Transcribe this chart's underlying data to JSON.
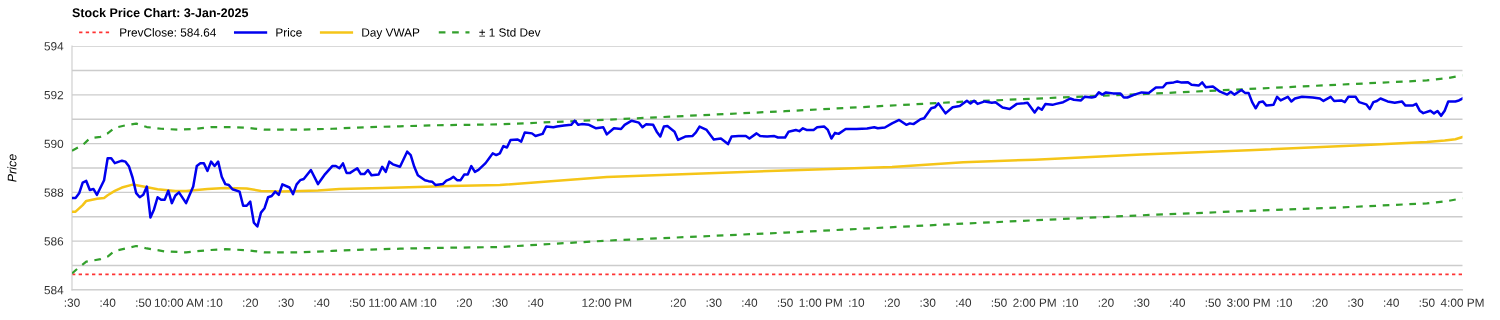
{
  "chart_data": {
    "type": "line",
    "title": "Stock Price Chart: 3-Jan-2025",
    "ylabel": "Price",
    "xlim": [
      "2025-01-03T09:30",
      "2025-01-03T16:00"
    ],
    "ylim": [
      584,
      594
    ],
    "xticks": [
      {
        "value": "2025-01-03T09:30",
        "label": ":30"
      },
      {
        "value": "2025-01-03T09:40",
        "label": ":40"
      },
      {
        "value": "2025-01-03T09:50",
        "label": ":50"
      },
      {
        "value": "2025-01-03T10:00",
        "label": "10:00 AM"
      },
      {
        "value": "2025-01-03T10:10",
        "label": ":10"
      },
      {
        "value": "2025-01-03T10:20",
        "label": ":20"
      },
      {
        "value": "2025-01-03T10:30",
        "label": ":30"
      },
      {
        "value": "2025-01-03T10:40",
        "label": ":40"
      },
      {
        "value": "2025-01-03T10:50",
        "label": ":50"
      },
      {
        "value": "2025-01-03T11:00",
        "label": "11:00 AM"
      },
      {
        "value": "2025-01-03T11:10",
        "label": ":10"
      },
      {
        "value": "2025-01-03T11:20",
        "label": ":20"
      },
      {
        "value": "2025-01-03T11:30",
        "label": ":30"
      },
      {
        "value": "2025-01-03T11:40",
        "label": ":40"
      },
      {
        "value": "2025-01-03T12:00",
        "label": "12:00 PM"
      },
      {
        "value": "2025-01-03T12:20",
        "label": ":20"
      },
      {
        "value": "2025-01-03T12:30",
        "label": ":30"
      },
      {
        "value": "2025-01-03T12:40",
        "label": ":40"
      },
      {
        "value": "2025-01-03T12:50",
        "label": ":50"
      },
      {
        "value": "2025-01-03T13:00",
        "label": "1:00 PM"
      },
      {
        "value": "2025-01-03T13:10",
        "label": ":10"
      },
      {
        "value": "2025-01-03T13:20",
        "label": ":20"
      },
      {
        "value": "2025-01-03T13:30",
        "label": ":30"
      },
      {
        "value": "2025-01-03T13:40",
        "label": ":40"
      },
      {
        "value": "2025-01-03T13:50",
        "label": ":50"
      },
      {
        "value": "2025-01-03T14:00",
        "label": "2:00 PM"
      },
      {
        "value": "2025-01-03T14:10",
        "label": ":10"
      },
      {
        "value": "2025-01-03T14:20",
        "label": ":20"
      },
      {
        "value": "2025-01-03T14:30",
        "label": ":30"
      },
      {
        "value": "2025-01-03T14:40",
        "label": ":40"
      },
      {
        "value": "2025-01-03T14:50",
        "label": ":50"
      },
      {
        "value": "2025-01-03T15:00",
        "label": "3:00 PM"
      },
      {
        "value": "2025-01-03T15:10",
        "label": ":10"
      },
      {
        "value": "2025-01-03T15:20",
        "label": ":20"
      },
      {
        "value": "2025-01-03T15:30",
        "label": ":30"
      },
      {
        "value": "2025-01-03T15:40",
        "label": ":40"
      },
      {
        "value": "2025-01-03T15:50",
        "label": ":50"
      },
      {
        "value": "2025-01-03T16:00",
        "label": "4:00 PM"
      }
    ],
    "yticks": [
      584,
      {
        "value": 585,
        "label": null
      },
      586,
      {
        "value": 587,
        "label": null
      },
      588,
      {
        "value": 589,
        "label": null
      },
      590,
      {
        "value": 591,
        "label": null
      },
      592,
      {
        "value": 593,
        "label": null
      },
      594
    ],
    "grid": "y",
    "legend": "top left",
    "marker": "none",
    "ref_lines": [
      {
        "axis": "y",
        "value": 584.64,
        "label": "PrevClose: 584.64",
        "color": "#ff3333",
        "line_style": "dotted"
      }
    ],
    "series": [
      {
        "name": "Price",
        "color": "#0000ee",
        "line_style": "solid",
        "x": [
          "2025-01-03T09:30",
          "2025-01-03T09:31",
          "2025-01-03T09:32",
          "2025-01-03T09:33",
          "2025-01-03T09:34",
          "2025-01-03T09:35",
          "2025-01-03T09:36",
          "2025-01-03T09:37",
          "2025-01-03T09:39",
          "2025-01-03T09:40",
          "2025-01-03T09:41",
          "2025-01-03T09:42",
          "2025-01-03T09:44",
          "2025-01-03T09:45",
          "2025-01-03T09:46",
          "2025-01-03T09:47",
          "2025-01-03T09:48",
          "2025-01-03T09:49",
          "2025-01-03T09:50",
          "2025-01-03T09:51",
          "2025-01-03T09:52",
          "2025-01-03T09:53",
          "2025-01-03T09:54",
          "2025-01-03T09:55",
          "2025-01-03T09:56",
          "2025-01-03T09:57",
          "2025-01-03T09:58",
          "2025-01-03T09:59",
          "2025-01-03T10:00",
          "2025-01-03T10:02",
          "2025-01-03T10:04",
          "2025-01-03T10:05",
          "2025-01-03T10:06",
          "2025-01-03T10:07",
          "2025-01-03T10:08",
          "2025-01-03T10:09",
          "2025-01-03T10:10",
          "2025-01-03T10:11",
          "2025-01-03T10:12",
          "2025-01-03T10:13",
          "2025-01-03T10:14",
          "2025-01-03T10:15",
          "2025-01-03T10:17",
          "2025-01-03T10:18",
          "2025-01-03T10:19",
          "2025-01-03T10:20",
          "2025-01-03T10:21",
          "2025-01-03T10:22",
          "2025-01-03T10:23",
          "2025-01-03T10:24",
          "2025-01-03T10:25",
          "2025-01-03T10:26",
          "2025-01-03T10:27",
          "2025-01-03T10:28",
          "2025-01-03T10:29",
          "2025-01-03T10:31",
          "2025-01-03T10:32",
          "2025-01-03T10:33",
          "2025-01-03T10:34",
          "2025-01-03T10:35",
          "2025-01-03T10:37",
          "2025-01-03T10:39",
          "2025-01-03T10:41",
          "2025-01-03T10:43",
          "2025-01-03T10:44",
          "2025-01-03T10:45",
          "2025-01-03T10:46",
          "2025-01-03T10:47",
          "2025-01-03T10:48",
          "2025-01-03T10:50",
          "2025-01-03T10:51",
          "2025-01-03T10:52",
          "2025-01-03T10:53",
          "2025-01-03T10:54",
          "2025-01-03T10:56",
          "2025-01-03T10:57",
          "2025-01-03T10:58",
          "2025-01-03T10:59",
          "2025-01-03T11:00",
          "2025-01-03T11:02",
          "2025-01-03T11:04",
          "2025-01-03T11:05",
          "2025-01-03T11:06",
          "2025-01-03T11:07",
          "2025-01-03T11:09",
          "2025-01-03T11:10",
          "2025-01-03T11:11",
          "2025-01-03T11:12",
          "2025-01-03T11:14",
          "2025-01-03T11:15",
          "2025-01-03T11:16",
          "2025-01-03T11:17",
          "2025-01-03T11:18",
          "2025-01-03T11:19",
          "2025-01-03T11:20",
          "2025-01-03T11:21",
          "2025-01-03T11:22",
          "2025-01-03T11:23",
          "2025-01-03T11:24",
          "2025-01-03T11:26",
          "2025-01-03T11:27",
          "2025-01-03T11:28",
          "2025-01-03T11:29",
          "2025-01-03T11:30",
          "2025-01-03T11:31",
          "2025-01-03T11:32",
          "2025-01-03T11:33",
          "2025-01-03T11:35",
          "2025-01-03T11:36",
          "2025-01-03T11:37",
          "2025-01-03T11:39",
          "2025-01-03T11:40",
          "2025-01-03T11:42",
          "2025-01-03T11:43",
          "2025-01-03T11:45",
          "2025-01-03T11:46",
          "2025-01-03T11:48",
          "2025-01-03T11:50",
          "2025-01-03T11:51",
          "2025-01-03T11:52",
          "2025-01-03T11:53",
          "2025-01-03T11:55",
          "2025-01-03T11:57",
          "2025-01-03T11:59",
          "2025-01-03T12:00",
          "2025-01-03T12:02",
          "2025-01-03T12:04",
          "2025-01-03T12:05",
          "2025-01-03T12:07",
          "2025-01-03T12:09",
          "2025-01-03T12:10",
          "2025-01-03T12:11",
          "2025-01-03T12:13",
          "2025-01-03T12:14",
          "2025-01-03T12:15",
          "2025-01-03T12:16",
          "2025-01-03T12:17",
          "2025-01-03T12:19",
          "2025-01-03T12:20",
          "2025-01-03T12:22",
          "2025-01-03T12:24",
          "2025-01-03T12:25",
          "2025-01-03T12:26",
          "2025-01-03T12:28",
          "2025-01-03T12:30",
          "2025-01-03T12:32",
          "2025-01-03T12:34",
          "2025-01-03T12:35",
          "2025-01-03T12:37",
          "2025-01-03T12:39",
          "2025-01-03T12:40",
          "2025-01-03T12:42",
          "2025-01-03T12:43",
          "2025-01-03T12:45",
          "2025-01-03T12:47",
          "2025-01-03T12:48",
          "2025-01-03T12:50",
          "2025-01-03T12:51",
          "2025-01-03T12:53",
          "2025-01-03T12:54",
          "2025-01-03T12:55",
          "2025-01-03T12:56",
          "2025-01-03T12:58",
          "2025-01-03T12:59",
          "2025-01-03T13:01",
          "2025-01-03T13:02",
          "2025-01-03T13:03",
          "2025-01-03T13:04",
          "2025-01-03T13:05",
          "2025-01-03T13:07",
          "2025-01-03T13:10",
          "2025-01-03T13:13",
          "2025-01-03T13:15",
          "2025-01-03T13:16",
          "2025-01-03T13:18",
          "2025-01-03T13:20",
          "2025-01-03T13:22",
          "2025-01-03T13:24",
          "2025-01-03T13:25",
          "2025-01-03T13:26",
          "2025-01-03T13:28",
          "2025-01-03T13:29",
          "2025-01-03T13:31",
          "2025-01-03T13:32",
          "2025-01-03T13:33",
          "2025-01-03T13:35",
          "2025-01-03T13:37",
          "2025-01-03T13:39",
          "2025-01-03T13:41",
          "2025-01-03T13:42",
          "2025-01-03T13:43",
          "2025-01-03T13:44",
          "2025-01-03T13:46",
          "2025-01-03T13:48",
          "2025-01-03T13:49",
          "2025-01-03T13:51",
          "2025-01-03T13:53",
          "2025-01-03T13:55",
          "2025-01-03T13:57",
          "2025-01-03T13:58",
          "2025-01-03T14:00",
          "2025-01-03T14:01",
          "2025-01-03T14:02",
          "2025-01-03T14:03",
          "2025-01-03T14:05",
          "2025-01-03T14:06",
          "2025-01-03T14:08",
          "2025-01-03T14:10",
          "2025-01-03T14:11",
          "2025-01-03T14:13",
          "2025-01-03T14:14",
          "2025-01-03T14:16",
          "2025-01-03T14:17",
          "2025-01-03T14:18",
          "2025-01-03T14:19",
          "2025-01-03T14:20",
          "2025-01-03T14:22",
          "2025-01-03T14:24",
          "2025-01-03T14:25",
          "2025-01-03T14:26",
          "2025-01-03T14:28",
          "2025-01-03T14:30",
          "2025-01-03T14:32",
          "2025-01-03T14:34",
          "2025-01-03T14:36",
          "2025-01-03T14:37",
          "2025-01-03T14:39",
          "2025-01-03T14:40",
          "2025-01-03T14:41",
          "2025-01-03T14:43",
          "2025-01-03T14:44",
          "2025-01-03T14:46",
          "2025-01-03T14:47",
          "2025-01-03T14:48",
          "2025-01-03T14:50",
          "2025-01-03T14:52",
          "2025-01-03T14:54",
          "2025-01-03T14:55",
          "2025-01-03T14:56",
          "2025-01-03T14:58",
          "2025-01-03T14:59",
          "2025-01-03T15:00",
          "2025-01-03T15:01",
          "2025-01-03T15:02",
          "2025-01-03T15:03",
          "2025-01-03T15:04",
          "2025-01-03T15:05",
          "2025-01-03T15:07",
          "2025-01-03T15:08",
          "2025-01-03T15:09",
          "2025-01-03T15:11",
          "2025-01-03T15:12",
          "2025-01-03T15:13",
          "2025-01-03T15:15",
          "2025-01-03T15:18",
          "2025-01-03T15:20",
          "2025-01-03T15:21",
          "2025-01-03T15:23",
          "2025-01-03T15:24",
          "2025-01-03T15:26",
          "2025-01-03T15:27",
          "2025-01-03T15:28",
          "2025-01-03T15:30",
          "2025-01-03T15:31",
          "2025-01-03T15:33",
          "2025-01-03T15:34",
          "2025-01-03T15:35",
          "2025-01-03T15:36",
          "2025-01-03T15:37",
          "2025-01-03T15:39",
          "2025-01-03T15:41",
          "2025-01-03T15:43",
          "2025-01-03T15:44",
          "2025-01-03T15:46",
          "2025-01-03T15:47",
          "2025-01-03T15:48",
          "2025-01-03T15:49",
          "2025-01-03T15:51",
          "2025-01-03T15:52",
          "2025-01-03T15:53",
          "2025-01-03T15:54",
          "2025-01-03T15:55",
          "2025-01-03T15:56",
          "2025-01-03T15:58",
          "2025-01-03T15:59",
          "2025-01-03T16:00"
        ],
        "values": [
          587.77,
          587.77,
          587.96,
          588.4,
          588.47,
          588.1,
          588.14,
          587.9,
          588.5,
          589.4,
          589.4,
          589.2,
          589.3,
          589.26,
          589.06,
          588.6,
          587.97,
          587.8,
          587.9,
          588.24,
          586.97,
          587.3,
          587.8,
          587.7,
          587.7,
          588.07,
          587.56,
          587.87,
          588.0,
          587.56,
          588.24,
          589.08,
          589.19,
          589.19,
          588.88,
          589.26,
          589.08,
          589.26,
          588.64,
          588.34,
          588.3,
          588.13,
          588.03,
          587.45,
          587.45,
          587.62,
          586.76,
          586.6,
          587.17,
          587.35,
          587.8,
          587.85,
          588.03,
          587.9,
          588.33,
          588.2,
          587.93,
          588.33,
          588.5,
          588.55,
          588.92,
          588.34,
          588.75,
          589.08,
          589.08,
          588.99,
          589.19,
          588.8,
          588.8,
          588.99,
          588.75,
          588.75,
          588.92,
          588.7,
          588.73,
          589.05,
          588.84,
          589.26,
          589.15,
          589.05,
          589.67,
          589.53,
          589.05,
          588.7,
          588.5,
          588.46,
          588.44,
          588.3,
          588.34,
          588.48,
          588.54,
          588.64,
          588.5,
          588.5,
          588.73,
          588.73,
          589.08,
          588.84,
          588.92,
          589.2,
          589.4,
          589.6,
          589.53,
          589.6,
          589.9,
          589.84,
          590.15,
          590.17,
          590.08,
          590.46,
          590.42,
          590.31,
          590.4,
          590.7,
          590.67,
          590.7,
          590.74,
          590.77,
          590.94,
          590.77,
          590.8,
          590.77,
          590.63,
          590.67,
          590.38,
          590.63,
          590.6,
          590.77,
          590.94,
          590.86,
          590.67,
          590.79,
          590.77,
          590.49,
          590.29,
          590.7,
          590.72,
          590.49,
          590.15,
          590.29,
          590.31,
          590.46,
          590.7,
          590.56,
          590.17,
          590.21,
          589.98,
          590.29,
          590.31,
          590.31,
          590.21,
          590.42,
          590.31,
          590.29,
          590.31,
          590.25,
          590.25,
          590.49,
          590.56,
          590.51,
          590.63,
          590.56,
          590.56,
          590.67,
          590.7,
          590.56,
          590.21,
          590.44,
          590.4,
          590.6,
          590.6,
          590.62,
          590.67,
          590.63,
          590.66,
          590.83,
          590.97,
          590.77,
          590.83,
          590.8,
          591.0,
          591.04,
          591.45,
          591.49,
          591.65,
          591.24,
          591.49,
          591.54,
          591.76,
          591.65,
          591.76,
          591.63,
          591.73,
          591.68,
          591.7,
          591.48,
          591.42,
          591.63,
          591.66,
          591.68,
          591.28,
          591.48,
          591.39,
          591.62,
          591.59,
          591.63,
          591.7,
          591.85,
          591.8,
          591.77,
          591.92,
          591.89,
          591.92,
          592.1,
          592.01,
          592.1,
          592.06,
          592.06,
          591.89,
          591.89,
          592.01,
          592.1,
          592.08,
          592.3,
          592.31,
          592.48,
          592.51,
          592.55,
          592.51,
          592.52,
          592.41,
          592.38,
          592.51,
          592.31,
          592.34,
          592.13,
          592.01,
          592.13,
          592.01,
          592.2,
          592.08,
          592.08,
          591.7,
          591.45,
          591.7,
          591.73,
          591.56,
          591.59,
          591.92,
          591.77,
          591.92,
          591.73,
          591.85,
          591.92,
          591.89,
          591.85,
          591.75,
          591.92,
          591.75,
          591.77,
          591.7,
          591.92,
          591.92,
          591.7,
          591.61,
          591.42,
          591.7,
          591.75,
          591.85,
          591.73,
          591.68,
          591.73,
          591.56,
          591.56,
          591.63,
          591.35,
          591.25,
          591.35,
          591.24,
          591.34,
          591.14,
          591.35,
          591.73,
          591.73,
          591.77,
          591.85
        ]
      },
      {
        "name": "Day VWAP",
        "color": "#f5c518",
        "line_style": "solid",
        "x": [
          "2025-01-03T09:30",
          "2025-01-03T09:31",
          "2025-01-03T09:33",
          "2025-01-03T09:34",
          "2025-01-03T09:37",
          "2025-01-03T09:39",
          "2025-01-03T09:40",
          "2025-01-03T09:42",
          "2025-01-03T09:44",
          "2025-01-03T09:47",
          "2025-01-03T09:50",
          "2025-01-03T09:54",
          "2025-01-03T09:59",
          "2025-01-03T10:02",
          "2025-01-03T10:08",
          "2025-01-03T10:13",
          "2025-01-03T10:19",
          "2025-01-03T10:23",
          "2025-01-03T10:29",
          "2025-01-03T10:39",
          "2025-01-03T10:45",
          "2025-01-03T10:57",
          "2025-01-03T11:07",
          "2025-01-03T11:16",
          "2025-01-03T11:30",
          "2025-01-03T12:00",
          "2025-01-03T12:50",
          "2025-01-03T13:20",
          "2025-01-03T13:40",
          "2025-01-03T14:00",
          "2025-01-03T14:30",
          "2025-01-03T15:00",
          "2025-01-03T15:30",
          "2025-01-03T15:50",
          "2025-01-03T15:55",
          "2025-01-03T15:58",
          "2025-01-03T16:00"
        ],
        "values": [
          587.21,
          587.21,
          587.48,
          587.65,
          587.74,
          587.77,
          587.88,
          588.06,
          588.2,
          588.32,
          588.24,
          588.13,
          588.06,
          588.06,
          588.14,
          588.18,
          588.16,
          588.06,
          588.04,
          588.08,
          588.14,
          588.18,
          588.22,
          588.26,
          588.3,
          588.63,
          588.9,
          589.04,
          589.24,
          589.34,
          589.55,
          589.73,
          589.92,
          590.07,
          590.13,
          590.18,
          590.27
        ]
      },
      {
        "name": "± 1 Std Dev",
        "color": "#33a02c",
        "line_style": "dashed",
        "x": [
          "2025-01-03T09:30",
          "2025-01-03T09:33",
          "2025-01-03T09:35",
          "2025-01-03T09:38",
          "2025-01-03T09:40",
          "2025-01-03T09:42",
          "2025-01-03T09:45",
          "2025-01-03T09:48",
          "2025-01-03T09:51",
          "2025-01-03T09:55",
          "2025-01-03T10:00",
          "2025-01-03T10:04",
          "2025-01-03T10:09",
          "2025-01-03T10:15",
          "2025-01-03T10:19",
          "2025-01-03T10:24",
          "2025-01-03T10:34",
          "2025-01-03T10:43",
          "2025-01-03T10:52",
          "2025-01-03T11:02",
          "2025-01-03T11:11",
          "2025-01-03T11:30",
          "2025-01-03T12:00",
          "2025-01-03T12:50",
          "2025-01-03T13:40",
          "2025-01-03T14:30",
          "2025-01-03T15:00",
          "2025-01-03T15:30",
          "2025-01-03T15:50",
          "2025-01-03T15:56",
          "2025-01-03T16:00"
        ],
        "values": [
          589.71,
          589.94,
          590.22,
          590.28,
          590.42,
          590.65,
          590.75,
          590.82,
          590.68,
          590.61,
          590.57,
          590.6,
          590.68,
          590.68,
          590.65,
          590.57,
          590.57,
          590.61,
          590.67,
          590.71,
          590.75,
          590.79,
          590.98,
          591.33,
          591.72,
          592.03,
          592.24,
          592.45,
          592.59,
          592.69,
          592.8
        ]
      },
      {
        "color": "#33a02c",
        "line_style": "dashed",
        "x": [
          "2025-01-03T09:30",
          "2025-01-03T09:32",
          "2025-01-03T09:34",
          "2025-01-03T09:38",
          "2025-01-03T09:40",
          "2025-01-03T09:42",
          "2025-01-03T09:45",
          "2025-01-03T09:48",
          "2025-01-03T09:51",
          "2025-01-03T09:56",
          "2025-01-03T10:02",
          "2025-01-03T10:08",
          "2025-01-03T10:13",
          "2025-01-03T10:19",
          "2025-01-03T10:24",
          "2025-01-03T10:34",
          "2025-01-03T10:43",
          "2025-01-03T10:52",
          "2025-01-03T11:02",
          "2025-01-03T11:11",
          "2025-01-03T11:30",
          "2025-01-03T12:00",
          "2025-01-03T12:50",
          "2025-01-03T13:40",
          "2025-01-03T14:30",
          "2025-01-03T15:00",
          "2025-01-03T15:30",
          "2025-01-03T15:50",
          "2025-01-03T15:56",
          "2025-01-03T16:00"
        ],
        "values": [
          584.68,
          584.93,
          585.16,
          585.26,
          585.37,
          585.6,
          585.7,
          585.8,
          585.7,
          585.58,
          585.54,
          585.63,
          585.67,
          585.63,
          585.54,
          585.54,
          585.6,
          585.65,
          585.69,
          585.72,
          585.76,
          586.02,
          586.35,
          586.72,
          587.06,
          587.24,
          587.41,
          587.55,
          587.65,
          587.76
        ]
      }
    ]
  }
}
